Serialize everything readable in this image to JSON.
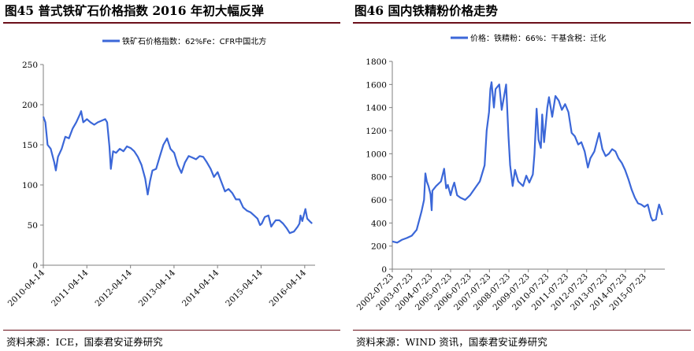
{
  "panels": [
    {
      "title": "图45  普式铁矿石价格指数 2016 年初大幅反弹",
      "source": "资料来源：ICE，国泰君安证券研究"
    },
    {
      "title": "图46  国内铁精粉价格走势",
      "source": "资料来源：WIND 资讯，国泰君安证券研究"
    }
  ],
  "chart_data": [
    {
      "type": "line",
      "series": [
        {
          "name": "铁矿石价格指数：62%Fe：CFR中国北方",
          "color": "#3b67d8",
          "points": [
            [
              "2010-04-14",
              185
            ],
            [
              "2010-05-01",
              178
            ],
            [
              "2010-05-20",
              150
            ],
            [
              "2010-06-15",
              145
            ],
            [
              "2010-07-15",
              128
            ],
            [
              "2010-07-28",
              118
            ],
            [
              "2010-08-15",
              135
            ],
            [
              "2010-09-15",
              145
            ],
            [
              "2010-10-15",
              160
            ],
            [
              "2010-11-15",
              158
            ],
            [
              "2010-12-15",
              170
            ],
            [
              "2011-01-15",
              178
            ],
            [
              "2011-02-15",
              188
            ],
            [
              "2011-02-25",
              192
            ],
            [
              "2011-03-15",
              178
            ],
            [
              "2011-04-15",
              182
            ],
            [
              "2011-05-15",
              178
            ],
            [
              "2011-06-15",
              175
            ],
            [
              "2011-07-15",
              178
            ],
            [
              "2011-08-15",
              180
            ],
            [
              "2011-09-15",
              182
            ],
            [
              "2011-10-01",
              178
            ],
            [
              "2011-10-20",
              148
            ],
            [
              "2011-11-01",
              120
            ],
            [
              "2011-11-20",
              142
            ],
            [
              "2011-12-15",
              140
            ],
            [
              "2012-01-15",
              145
            ],
            [
              "2012-02-15",
              142
            ],
            [
              "2012-03-15",
              148
            ],
            [
              "2012-04-15",
              146
            ],
            [
              "2012-05-15",
              142
            ],
            [
              "2012-06-15",
              135
            ],
            [
              "2012-07-15",
              125
            ],
            [
              "2012-08-15",
              108
            ],
            [
              "2012-09-05",
              88
            ],
            [
              "2012-09-25",
              105
            ],
            [
              "2012-10-15",
              118
            ],
            [
              "2012-11-15",
              120
            ],
            [
              "2012-12-15",
              135
            ],
            [
              "2013-01-15",
              150
            ],
            [
              "2013-02-15",
              158
            ],
            [
              "2013-03-15",
              145
            ],
            [
              "2013-04-15",
              140
            ],
            [
              "2013-05-15",
              125
            ],
            [
              "2013-06-15",
              115
            ],
            [
              "2013-07-15",
              128
            ],
            [
              "2013-08-15",
              136
            ],
            [
              "2013-09-15",
              134
            ],
            [
              "2013-10-15",
              132
            ],
            [
              "2013-11-15",
              136
            ],
            [
              "2013-12-15",
              135
            ],
            [
              "2014-01-15",
              128
            ],
            [
              "2014-02-15",
              120
            ],
            [
              "2014-03-15",
              110
            ],
            [
              "2014-04-15",
              116
            ],
            [
              "2014-05-15",
              104
            ],
            [
              "2014-06-15",
              92
            ],
            [
              "2014-07-15",
              95
            ],
            [
              "2014-08-15",
              90
            ],
            [
              "2014-09-15",
              82
            ],
            [
              "2014-10-15",
              82
            ],
            [
              "2014-11-15",
              72
            ],
            [
              "2014-12-15",
              68
            ],
            [
              "2015-01-15",
              66
            ],
            [
              "2015-02-15",
              62
            ],
            [
              "2015-03-15",
              58
            ],
            [
              "2015-04-05",
              50
            ],
            [
              "2015-04-20",
              52
            ],
            [
              "2015-05-15",
              60
            ],
            [
              "2015-06-15",
              62
            ],
            [
              "2015-07-08",
              48
            ],
            [
              "2015-07-25",
              52
            ],
            [
              "2015-08-15",
              56
            ],
            [
              "2015-09-15",
              56
            ],
            [
              "2015-10-15",
              52
            ],
            [
              "2015-11-15",
              46
            ],
            [
              "2015-12-10",
              40
            ],
            [
              "2016-01-15",
              42
            ],
            [
              "2016-02-15",
              48
            ],
            [
              "2016-03-01",
              52
            ],
            [
              "2016-03-10",
              62
            ],
            [
              "2016-03-25",
              55
            ],
            [
              "2016-04-20",
              70
            ],
            [
              "2016-05-05",
              58
            ],
            [
              "2016-05-25",
              55
            ],
            [
              "2016-06-15",
              52
            ]
          ]
        }
      ],
      "x_ticks": [
        "2010-04-14",
        "2011-04-14",
        "2012-04-14",
        "2013-04-14",
        "2014-04-14",
        "2015-04-14",
        "2016-04-14"
      ],
      "xlim": [
        "2010-04-14",
        "2016-07-10"
      ],
      "ylim": [
        0,
        250
      ],
      "y_ticks": [
        0,
        50,
        100,
        150,
        200,
        250
      ],
      "grid": false,
      "legend": "top-center"
    },
    {
      "type": "line",
      "series": [
        {
          "name": "价格：铁精粉：66%：干基含税：迁化",
          "color": "#3b67d8",
          "points": [
            [
              "2002-07-23",
              240
            ],
            [
              "2002-10-23",
              230
            ],
            [
              "2003-01-23",
              255
            ],
            [
              "2003-04-23",
              270
            ],
            [
              "2003-07-23",
              290
            ],
            [
              "2003-10-23",
              340
            ],
            [
              "2004-01-23",
              500
            ],
            [
              "2004-03-10",
              600
            ],
            [
              "2004-04-05",
              830
            ],
            [
              "2004-05-01",
              760
            ],
            [
              "2004-06-01",
              720
            ],
            [
              "2004-07-10",
              650
            ],
            [
              "2004-08-01",
              510
            ],
            [
              "2004-08-15",
              680
            ],
            [
              "2004-10-23",
              720
            ],
            [
              "2005-01-23",
              760
            ],
            [
              "2005-03-23",
              870
            ],
            [
              "2005-05-01",
              700
            ],
            [
              "2005-06-01",
              730
            ],
            [
              "2005-07-23",
              640
            ],
            [
              "2005-09-01",
              710
            ],
            [
              "2005-10-01",
              750
            ],
            [
              "2005-11-23",
              640
            ],
            [
              "2006-01-23",
              620
            ],
            [
              "2006-04-23",
              600
            ],
            [
              "2006-07-23",
              640
            ],
            [
              "2006-10-23",
              700
            ],
            [
              "2007-01-23",
              760
            ],
            [
              "2007-04-23",
              900
            ],
            [
              "2007-06-01",
              1200
            ],
            [
              "2007-07-15",
              1360
            ],
            [
              "2007-08-10",
              1560
            ],
            [
              "2007-09-01",
              1620
            ],
            [
              "2007-10-15",
              1400
            ],
            [
              "2007-11-15",
              1560
            ],
            [
              "2008-01-23",
              1600
            ],
            [
              "2008-03-10",
              1380
            ],
            [
              "2008-06-01",
              1600
            ],
            [
              "2008-07-15",
              1150
            ],
            [
              "2008-08-15",
              900
            ],
            [
              "2008-10-01",
              720
            ],
            [
              "2008-11-15",
              860
            ],
            [
              "2009-01-15",
              760
            ],
            [
              "2009-04-15",
              720
            ],
            [
              "2009-06-15",
              810
            ],
            [
              "2009-08-10",
              750
            ],
            [
              "2009-10-15",
              820
            ],
            [
              "2009-11-15",
              1000
            ],
            [
              "2009-12-25",
              1390
            ],
            [
              "2010-02-01",
              1120
            ],
            [
              "2010-03-15",
              1050
            ],
            [
              "2010-04-10",
              1340
            ],
            [
              "2010-05-15",
              1100
            ],
            [
              "2010-07-15",
              1400
            ],
            [
              "2010-08-15",
              1490
            ],
            [
              "2010-10-15",
              1320
            ],
            [
              "2010-12-15",
              1500
            ],
            [
              "2011-02-15",
              1460
            ],
            [
              "2011-04-15",
              1380
            ],
            [
              "2011-06-15",
              1430
            ],
            [
              "2011-08-15",
              1360
            ],
            [
              "2011-10-15",
              1180
            ],
            [
              "2011-12-15",
              1150
            ],
            [
              "2012-02-15",
              1080
            ],
            [
              "2012-04-15",
              1100
            ],
            [
              "2012-06-15",
              1020
            ],
            [
              "2012-08-15",
              880
            ],
            [
              "2012-10-01",
              960
            ],
            [
              "2012-12-15",
              1020
            ],
            [
              "2013-03-15",
              1180
            ],
            [
              "2013-05-15",
              1040
            ],
            [
              "2013-07-15",
              980
            ],
            [
              "2013-09-15",
              1000
            ],
            [
              "2013-11-15",
              1040
            ],
            [
              "2014-01-15",
              1020
            ],
            [
              "2014-03-15",
              960
            ],
            [
              "2014-05-15",
              920
            ],
            [
              "2014-07-15",
              860
            ],
            [
              "2014-09-15",
              780
            ],
            [
              "2014-11-15",
              690
            ],
            [
              "2015-01-15",
              620
            ],
            [
              "2015-03-15",
              570
            ],
            [
              "2015-05-15",
              560
            ],
            [
              "2015-07-15",
              540
            ],
            [
              "2015-09-15",
              560
            ],
            [
              "2015-11-15",
              450
            ],
            [
              "2015-12-15",
              420
            ],
            [
              "2016-02-15",
              430
            ],
            [
              "2016-03-15",
              500
            ],
            [
              "2016-04-15",
              560
            ],
            [
              "2016-05-15",
              520
            ],
            [
              "2016-06-15",
              470
            ]
          ]
        }
      ],
      "x_ticks": [
        "2002-07-23",
        "2003-07-23",
        "2004-07-23",
        "2005-07-23",
        "2006-07-23",
        "2007-07-23",
        "2008-07-23",
        "2009-07-23",
        "2010-07-23",
        "2011-07-23",
        "2012-07-23",
        "2013-07-23",
        "2014-07-23",
        "2015-07-23"
      ],
      "xlim": [
        "2002-07-23",
        "2016-08-01"
      ],
      "ylim": [
        0,
        1800
      ],
      "y_ticks": [
        0,
        200,
        400,
        600,
        800,
        1000,
        1200,
        1400,
        1600,
        1800
      ],
      "grid": false,
      "legend": "top-center"
    }
  ]
}
